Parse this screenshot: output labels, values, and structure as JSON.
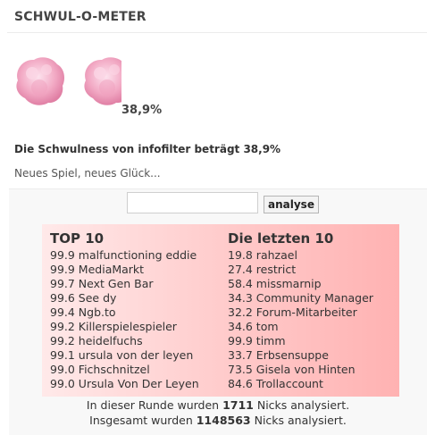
{
  "header": {
    "title": "SCHWUL-O-METER"
  },
  "meter": {
    "percent": "38,9%",
    "value_percent": 38.9,
    "icon": "cotton-candy-icon",
    "color": "#f2a9c4"
  },
  "result": {
    "text": "Die Schwulness von infofilter beträgt 38,9%",
    "subtext": "Neues Spiel, neues Glück..."
  },
  "search": {
    "value": "",
    "placeholder": "",
    "button_label": "analyse"
  },
  "top10": {
    "heading": "TOP 10",
    "items": [
      "99.9 malfunctioning eddie",
      "99.9 MediaMarkt",
      "99.7 Next Gen Bar",
      "99.6 See dy",
      "99.4 Ngb.to",
      "99.2 Killerspielespieler",
      "99.2 heidelfuchs",
      "99.1 ursula von der leyen",
      "99.0 Fichschnitzel",
      "99.0 Ursula Von Der Leyen"
    ]
  },
  "last10": {
    "heading": "Die letzten 10",
    "items": [
      "19.8 rahzael",
      "27.4 restrict",
      "58.4 missmarnip",
      "34.3 Community Manager",
      "32.2 Forum-Mitarbeiter",
      "34.6 tom",
      "99.9 timm",
      "33.7 Erbsensuppe",
      "73.5 Gisela von Hinten",
      "84.6 Trollaccount"
    ]
  },
  "stats": {
    "round_prefix": "In dieser Runde wurden ",
    "round_count": "1711",
    "round_suffix": " Nicks analysiert.",
    "total_prefix": "Insgesamt wurden ",
    "total_count": "1148563",
    "total_suffix": " Nicks analysiert."
  },
  "colors": {
    "box_light": "#ffe9e9",
    "box_dark": "#ffb2b2"
  }
}
